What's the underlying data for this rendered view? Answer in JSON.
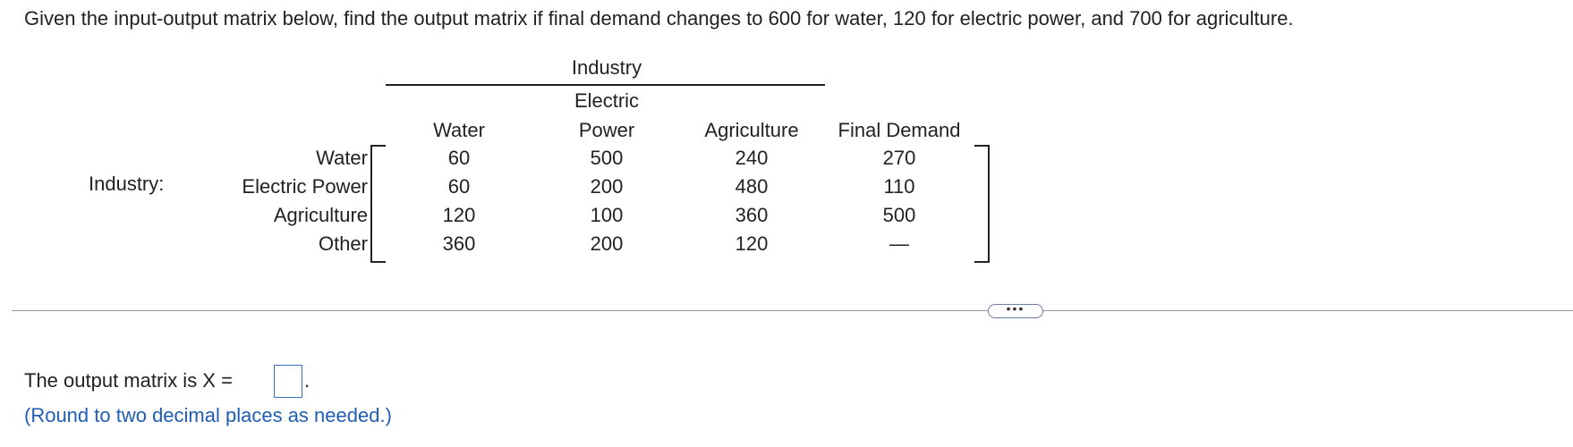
{
  "question": "Given the input-output matrix below, find the output matrix if final demand changes to 600 for water, 120 for electric power, and 700 for agriculture.",
  "table": {
    "group_header": "Industry",
    "row_group_label": "Industry:",
    "columns": [
      "Water",
      "Electric Power",
      "Agriculture",
      "Final Demand"
    ],
    "row_labels": [
      "Water",
      "Electric Power",
      "Agriculture",
      "Other"
    ],
    "rows": [
      [
        60,
        500,
        240,
        270
      ],
      [
        60,
        200,
        480,
        110
      ],
      [
        120,
        100,
        360,
        500
      ],
      [
        360,
        200,
        120,
        "—"
      ]
    ]
  },
  "answer": {
    "prompt": "The output matrix is X =",
    "suffix": ".",
    "note": "(Round to two decimal places as needed.)"
  }
}
